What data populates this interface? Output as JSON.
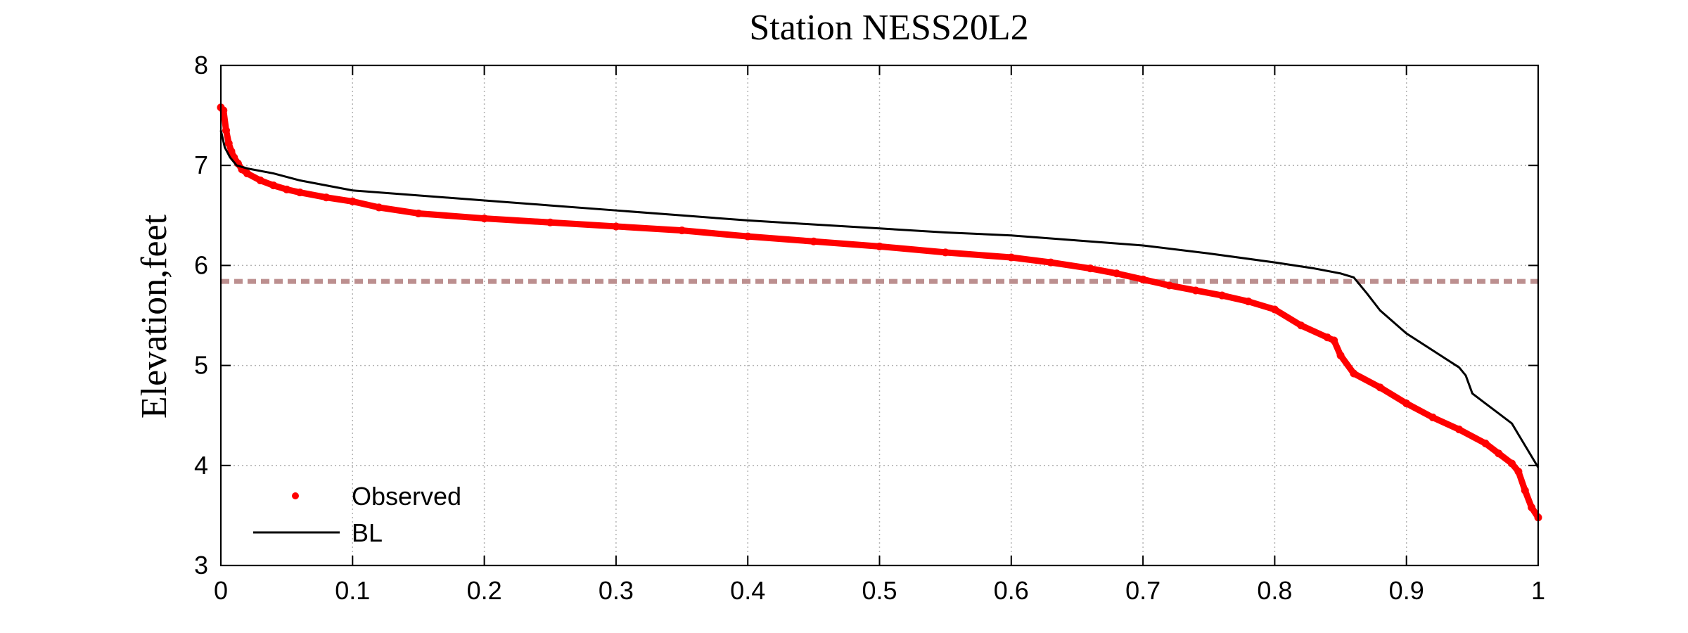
{
  "chart_data": {
    "type": "line",
    "title": "Station NESS20L2",
    "xlabel": "",
    "ylabel": "Elevation,feet",
    "xlim": [
      0,
      1
    ],
    "ylim": [
      3,
      8
    ],
    "x_ticks": [
      "0",
      "0.1",
      "0.2",
      "0.3",
      "0.4",
      "0.5",
      "0.6",
      "0.7",
      "0.8",
      "0.9",
      "1"
    ],
    "y_ticks": [
      "3",
      "4",
      "5",
      "6",
      "7",
      "8"
    ],
    "grid": true,
    "legend_position": "bottom-left",
    "reference_line": {
      "y": 5.84,
      "style": "dashed",
      "color": "#bc8f8f"
    },
    "series": [
      {
        "name": "Observed",
        "style": "markers",
        "color": "#ff0000",
        "points": [
          [
            0.0,
            7.58
          ],
          [
            0.002,
            7.55
          ],
          [
            0.004,
            7.35
          ],
          [
            0.006,
            7.22
          ],
          [
            0.008,
            7.14
          ],
          [
            0.01,
            7.08
          ],
          [
            0.013,
            7.02
          ],
          [
            0.016,
            6.96
          ],
          [
            0.02,
            6.92
          ],
          [
            0.03,
            6.85
          ],
          [
            0.04,
            6.8
          ],
          [
            0.05,
            6.76
          ],
          [
            0.06,
            6.73
          ],
          [
            0.08,
            6.68
          ],
          [
            0.1,
            6.64
          ],
          [
            0.12,
            6.58
          ],
          [
            0.15,
            6.52
          ],
          [
            0.2,
            6.47
          ],
          [
            0.25,
            6.43
          ],
          [
            0.3,
            6.39
          ],
          [
            0.35,
            6.35
          ],
          [
            0.4,
            6.29
          ],
          [
            0.45,
            6.24
          ],
          [
            0.5,
            6.19
          ],
          [
            0.55,
            6.13
          ],
          [
            0.6,
            6.08
          ],
          [
            0.63,
            6.03
          ],
          [
            0.66,
            5.97
          ],
          [
            0.68,
            5.92
          ],
          [
            0.7,
            5.86
          ],
          [
            0.72,
            5.8
          ],
          [
            0.74,
            5.75
          ],
          [
            0.76,
            5.7
          ],
          [
            0.78,
            5.64
          ],
          [
            0.8,
            5.56
          ],
          [
            0.82,
            5.4
          ],
          [
            0.84,
            5.28
          ],
          [
            0.845,
            5.25
          ],
          [
            0.85,
            5.1
          ],
          [
            0.86,
            4.92
          ],
          [
            0.88,
            4.78
          ],
          [
            0.9,
            4.62
          ],
          [
            0.92,
            4.48
          ],
          [
            0.94,
            4.36
          ],
          [
            0.96,
            4.22
          ],
          [
            0.97,
            4.12
          ],
          [
            0.98,
            4.02
          ],
          [
            0.985,
            3.94
          ],
          [
            0.99,
            3.75
          ],
          [
            0.995,
            3.58
          ],
          [
            1.0,
            3.48
          ]
        ]
      },
      {
        "name": "BL",
        "style": "line",
        "color": "#000000",
        "points": [
          [
            0.0,
            7.35
          ],
          [
            0.003,
            7.18
          ],
          [
            0.007,
            7.08
          ],
          [
            0.012,
            7.0
          ],
          [
            0.02,
            6.97
          ],
          [
            0.04,
            6.92
          ],
          [
            0.06,
            6.85
          ],
          [
            0.08,
            6.8
          ],
          [
            0.1,
            6.75
          ],
          [
            0.15,
            6.7
          ],
          [
            0.2,
            6.65
          ],
          [
            0.25,
            6.6
          ],
          [
            0.3,
            6.55
          ],
          [
            0.35,
            6.5
          ],
          [
            0.4,
            6.45
          ],
          [
            0.45,
            6.41
          ],
          [
            0.5,
            6.37
          ],
          [
            0.55,
            6.33
          ],
          [
            0.6,
            6.3
          ],
          [
            0.65,
            6.25
          ],
          [
            0.7,
            6.2
          ],
          [
            0.75,
            6.12
          ],
          [
            0.8,
            6.03
          ],
          [
            0.83,
            5.97
          ],
          [
            0.85,
            5.92
          ],
          [
            0.86,
            5.88
          ],
          [
            0.87,
            5.72
          ],
          [
            0.88,
            5.55
          ],
          [
            0.9,
            5.32
          ],
          [
            0.92,
            5.15
          ],
          [
            0.94,
            4.98
          ],
          [
            0.945,
            4.9
          ],
          [
            0.95,
            4.72
          ],
          [
            0.96,
            4.62
          ],
          [
            0.97,
            4.52
          ],
          [
            0.98,
            4.42
          ],
          [
            0.99,
            4.2
          ],
          [
            1.0,
            3.98
          ]
        ]
      }
    ]
  }
}
